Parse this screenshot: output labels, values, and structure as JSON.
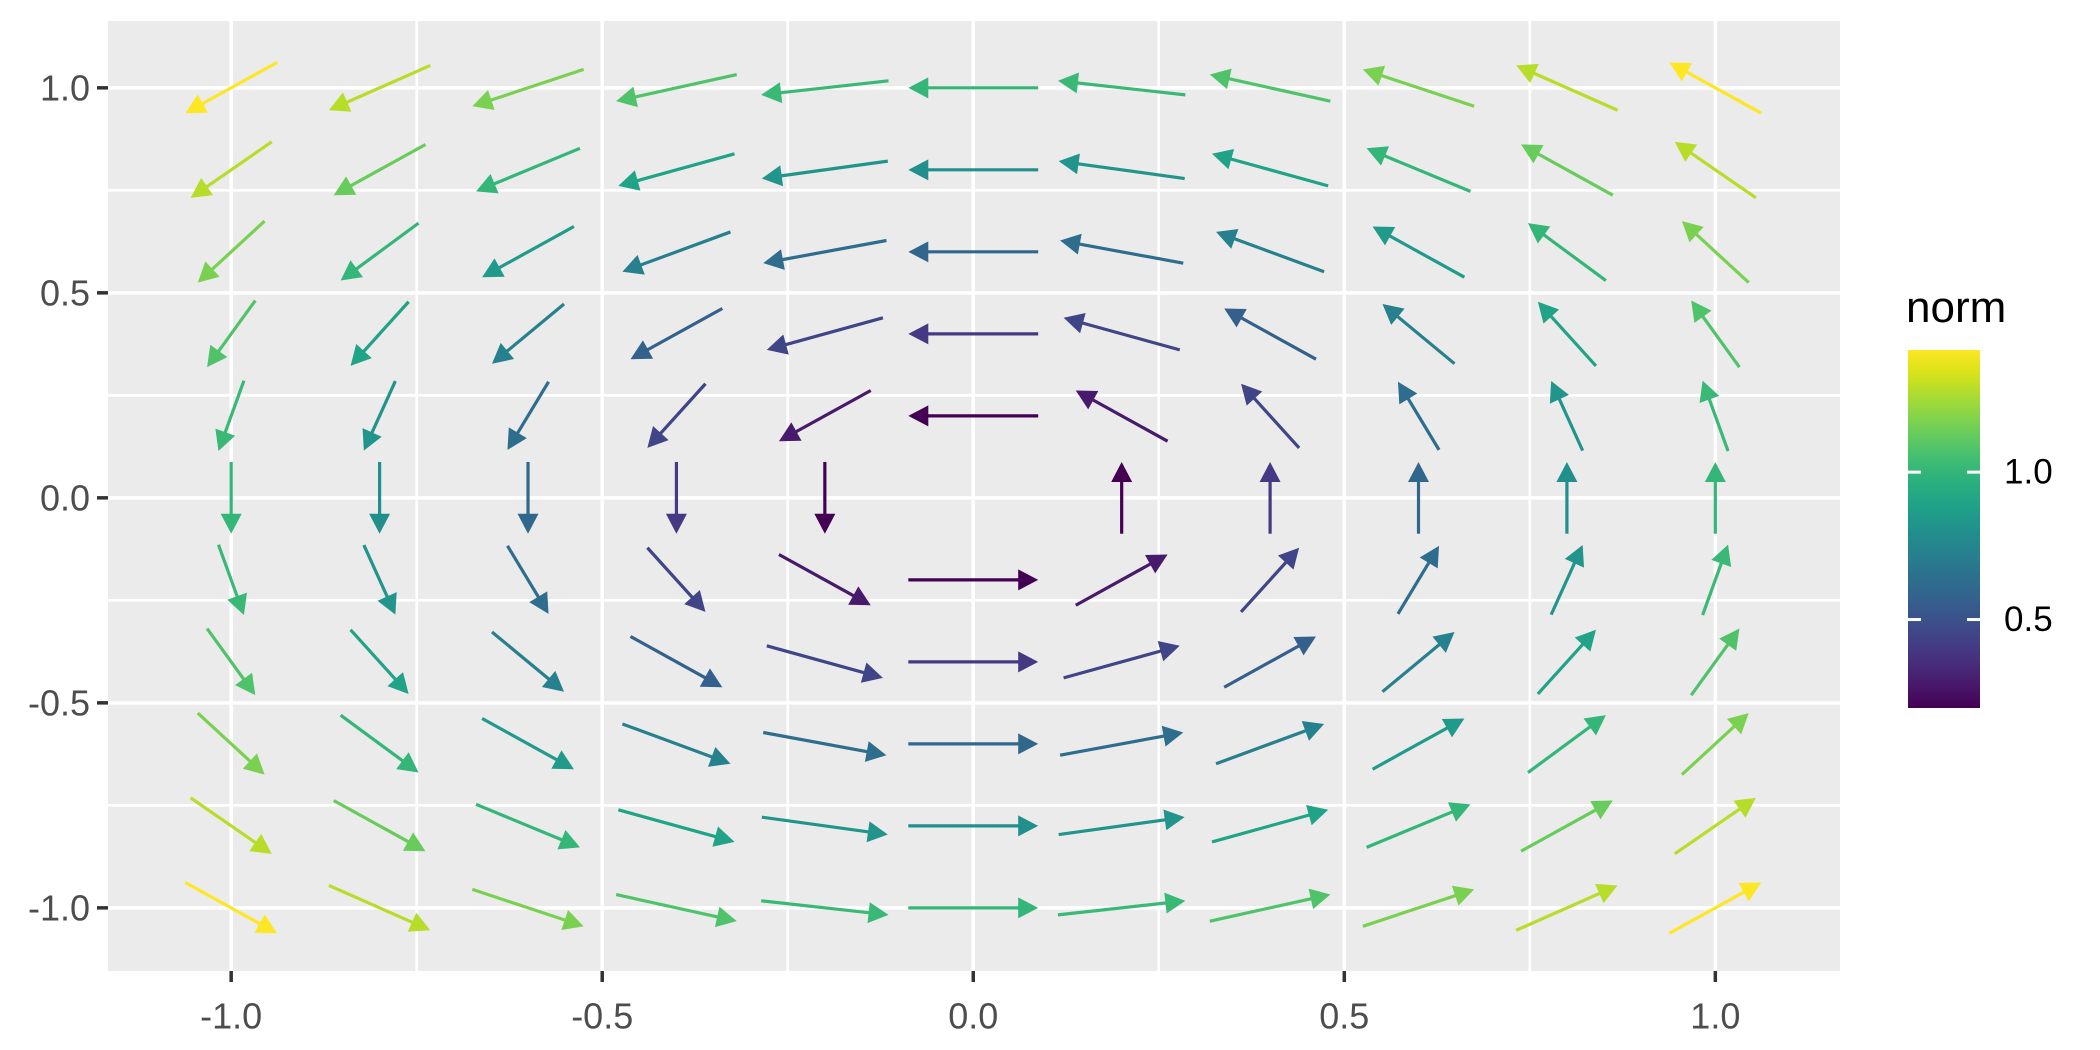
{
  "figure": {
    "background_color": "#FFFFFF",
    "panel_color": "#EBEBEB",
    "grid_color": "#FFFFFF",
    "axis_text_color": "#4D4D4D",
    "axis_tick_color": "#333333",
    "legend_text_color": "#000000"
  },
  "chart_data": {
    "type": "quiver",
    "title": "",
    "xlabel": "",
    "ylabel": "",
    "description": "2D rotational vector field F(x,y) = (-y, x) sampled on a square grid; arrows are unit-normalized and colored by vector norm using the viridis scale",
    "x_values": [
      -1,
      -0.8,
      -0.6,
      -0.4,
      -0.2,
      0,
      0.2,
      0.4,
      0.6,
      0.8,
      1
    ],
    "y_values": [
      -1,
      -0.8,
      -0.6,
      -0.4,
      -0.2,
      0,
      0.2,
      0.4,
      0.6,
      0.8,
      1
    ],
    "vector_field": {
      "u": "-y",
      "v": "x"
    },
    "excluded_points": [
      [
        0,
        0
      ]
    ],
    "arrow_count": 120,
    "arrows_normalized": true,
    "arrow_length_data_units": 0.175,
    "color_variable": "norm",
    "norm_formula": "sqrt(x^2 + y^2)",
    "x_axis": {
      "tick_values": [
        -1,
        -0.5,
        0,
        0.5,
        1
      ],
      "tick_labels": [
        "-1.0",
        "-0.5",
        "0.0",
        "0.5",
        "1.0"
      ],
      "range": [
        -1.166,
        1.168
      ]
    },
    "y_axis": {
      "tick_values": [
        -1,
        -0.5,
        0,
        0.5,
        1
      ],
      "tick_labels": [
        "-1.0",
        "-0.5",
        "0.0",
        "0.5",
        "1.0"
      ],
      "range": [
        -1.154,
        1.163
      ]
    },
    "grid": {
      "major_x": [
        -1,
        -0.5,
        0,
        0.5,
        1
      ],
      "major_y": [
        -1,
        -0.5,
        0,
        0.5,
        1
      ],
      "minor_x": [
        -0.75,
        -0.25,
        0.25,
        0.75
      ],
      "minor_y": [
        -0.75,
        -0.25,
        0.25,
        0.75
      ]
    },
    "legend": {
      "title": "norm",
      "position": "right",
      "limits": [
        0.2,
        1.4142
      ],
      "tick_values": [
        1.0,
        0.5
      ],
      "tick_labels": [
        "1.0",
        "0.5"
      ]
    },
    "viridis_palette": [
      "#440154",
      "#48186A",
      "#472D7B",
      "#424086",
      "#3B528B",
      "#33638D",
      "#2C728E",
      "#26828E",
      "#21918C",
      "#1FA188",
      "#28AE80",
      "#3EBC74",
      "#5EC962",
      "#84D44B",
      "#ADDC30",
      "#D8E219",
      "#FDE725"
    ]
  }
}
